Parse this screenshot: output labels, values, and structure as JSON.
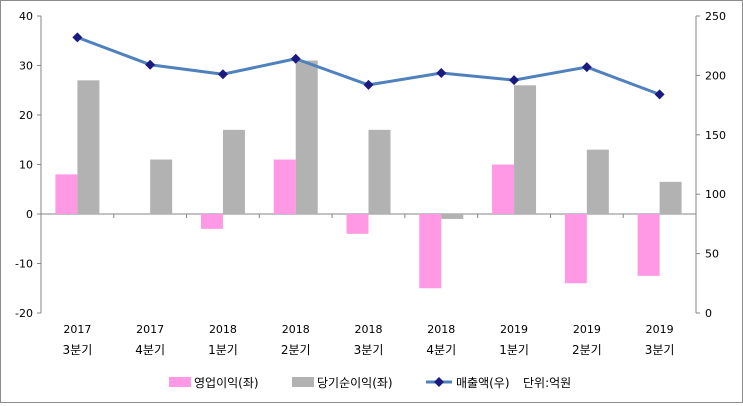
{
  "chart_data": {
    "type": "bar+line",
    "title": "",
    "unit_note": "단위:억원",
    "categories": [
      [
        "2017",
        "3분기"
      ],
      [
        "2017",
        "4분기"
      ],
      [
        "2018",
        "1분기"
      ],
      [
        "2018",
        "2분기"
      ],
      [
        "2018",
        "3분기"
      ],
      [
        "2018",
        "4분기"
      ],
      [
        "2019",
        "1분기"
      ],
      [
        "2019",
        "2분기"
      ],
      [
        "2019",
        "3분기"
      ]
    ],
    "left_axis": {
      "min": -20,
      "max": 40,
      "step": 10,
      "ticks": [
        "-20",
        "-10",
        "0",
        "10",
        "20",
        "30",
        "40"
      ]
    },
    "right_axis": {
      "min": 0,
      "max": 250,
      "step": 50,
      "ticks": [
        "0",
        "50",
        "100",
        "150",
        "200",
        "250"
      ]
    },
    "series": [
      {
        "name": "영업이익(좌)",
        "kind": "bar",
        "axis": "left",
        "color": "#ff99e6",
        "values": [
          8,
          0,
          -3,
          11,
          -4,
          -15,
          10,
          -14,
          -12.5
        ]
      },
      {
        "name": "당기순이익(좌)",
        "kind": "bar",
        "axis": "left",
        "color": "#b2b2b2",
        "values": [
          27,
          11,
          17,
          31,
          17,
          -1,
          26,
          13,
          6.5
        ]
      },
      {
        "name": "매출액(우)",
        "kind": "line",
        "axis": "right",
        "color": "#4f81bd",
        "marker_color": "#1a1a80",
        "values": [
          232,
          209,
          201,
          214,
          192,
          202,
          196,
          207,
          184
        ]
      }
    ],
    "legend": {
      "position": "bottom"
    },
    "grid": false
  }
}
